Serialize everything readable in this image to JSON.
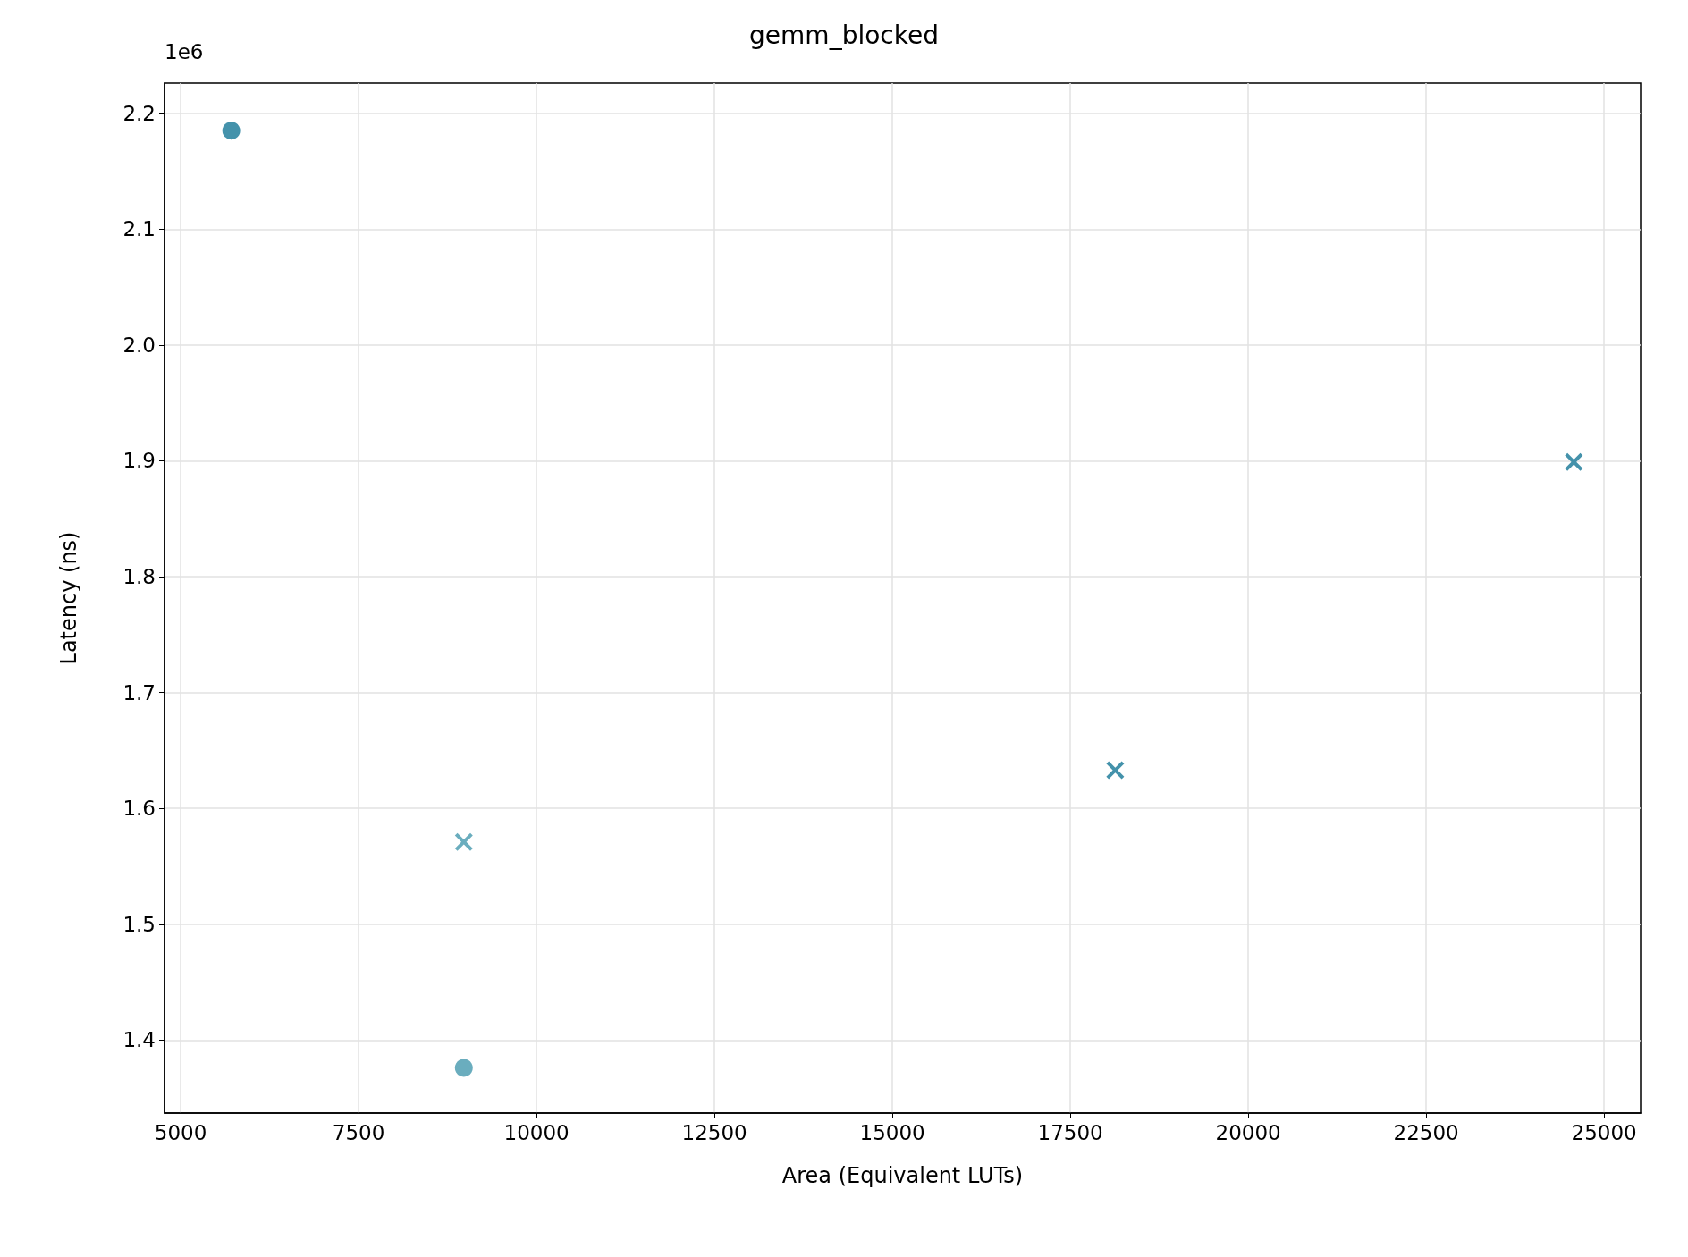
{
  "chart_data": {
    "type": "scatter",
    "title": "gemm_blocked",
    "xlabel": "Area (Equivalent LUTs)",
    "ylabel": "Latency (ns)",
    "annotations": [
      "1e6"
    ],
    "xlim": [
      4773,
      25514
    ],
    "xticks": [
      5000,
      7500,
      10000,
      12500,
      15000,
      17500,
      20000,
      22500,
      25000
    ],
    "ylim": [
      1.337,
      2.226
    ],
    "yticks": [
      1.4,
      1.5,
      1.6,
      1.7,
      1.8,
      1.9,
      {
        "value": 2.0,
        "label": "2.0"
      },
      2.1,
      2.2
    ],
    "grid": true,
    "series": [
      {
        "marker": "circle",
        "x": [
          5711,
          8979
        ],
        "values": [
          2.185,
          1.376
        ],
        "colors": [
          "#3a8ca6",
          "#62a9bb"
        ]
      },
      {
        "marker": "cross",
        "x": [
          8979,
          18132,
          24576
        ],
        "values": [
          1.571,
          1.633,
          1.899
        ],
        "colors": [
          "#62a9bb",
          "#3a8ca6",
          "#3a8ca6"
        ]
      }
    ]
  }
}
